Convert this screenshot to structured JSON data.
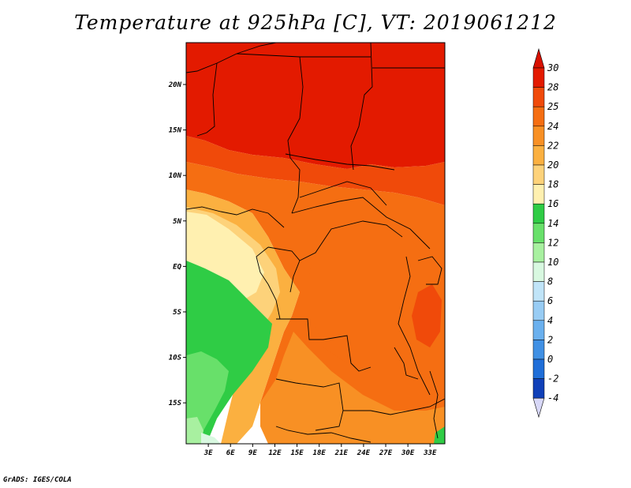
{
  "title": "Temperature at 925hPa [C], VT: 2019061212",
  "credit": "GrADS: IGES/COLA",
  "map": {
    "lat_labels": [
      "20N",
      "15N",
      "10N",
      "5N",
      "EQ",
      "5S",
      "10S",
      "15S"
    ],
    "lat_values": [
      20,
      15,
      10,
      5,
      0,
      -5,
      -10,
      -15
    ],
    "lon_labels": [
      "3E",
      "6E",
      "9E",
      "12E",
      "15E",
      "18E",
      "21E",
      "24E",
      "27E",
      "30E",
      "33E"
    ],
    "lon_values": [
      3,
      6,
      9,
      12,
      15,
      18,
      21,
      24,
      27,
      30,
      33
    ],
    "lon_range": [
      0,
      35
    ],
    "lat_range": [
      -19.5,
      24.6
    ]
  },
  "colorbar": {
    "labels": [
      "30",
      "28",
      "25",
      "24",
      "22",
      "20",
      "18",
      "16",
      "14",
      "12",
      "10",
      "8",
      "6",
      "4",
      "2",
      "0",
      "-2",
      "-4"
    ],
    "colors": [
      "#e31a00",
      "#f04a0a",
      "#f56e12",
      "#f89024",
      "#fbb040",
      "#fdd27a",
      "#fff0b0",
      "#2fcc45",
      "#68e06a",
      "#a8f0a0",
      "#d8f8e0",
      "#c0e4f8",
      "#98ccf4",
      "#6ab0ee",
      "#4090e4",
      "#1f6ed8",
      "#1040b8",
      "#0a1880",
      "#0a0c50"
    ],
    "top_color": "#d81000",
    "bottom_color": "#d8d8f8"
  },
  "colors": {
    "hot_north": "#e31a00",
    "t28": "#f04a0a",
    "t25": "#f56e12",
    "t24": "#f89024",
    "t22": "#fbb040",
    "t20": "#fdd27a",
    "t18": "#fff0b0",
    "t16": "#2fcc45",
    "t14": "#68e06a",
    "t12": "#a8f0a0",
    "t10": "#d8f8e0"
  }
}
